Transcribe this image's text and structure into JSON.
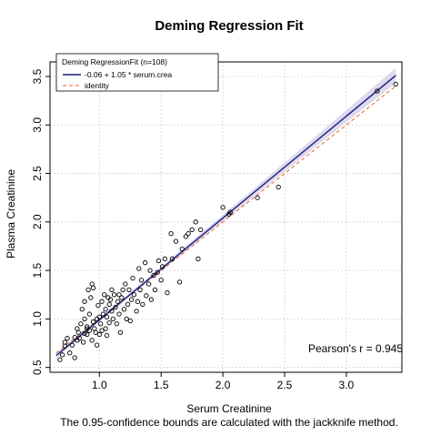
{
  "chart_data": {
    "type": "scatter",
    "title": "Deming Regression Fit",
    "xlabel": "Serum Creatinine",
    "ylabel": "Plasma Creatinine",
    "caption": "The 0.95-confidence bounds are calculated with the jackknife method.",
    "xlim": [
      0.6,
      3.45
    ],
    "ylim": [
      0.45,
      3.65
    ],
    "xticks": [
      1.0,
      1.5,
      2.0,
      2.5,
      3.0
    ],
    "xtick_labels": [
      "1.0",
      "1.5",
      "2.0",
      "2.5",
      "3.0"
    ],
    "yticks": [
      0.5,
      1.0,
      1.5,
      2.0,
      2.5,
      3.0,
      3.5
    ],
    "ytick_labels": [
      "0.5",
      "1.0",
      "1.5",
      "2.0",
      "2.5",
      "3.0",
      "3.5"
    ],
    "grid": true,
    "legend": {
      "placement": "top-left",
      "title": "Deming RegressionFit (n=108)",
      "entries": [
        {
          "label": "-0.06 + 1.05 * serum.crea",
          "color": "#1a1a80",
          "style": "solid"
        },
        {
          "label": "identity",
          "color": "#e8642c",
          "style": "dashed"
        }
      ]
    },
    "annotation": "Pearson's r = 0.945",
    "fit": {
      "intercept": -0.06,
      "slope": 1.05,
      "color": "#1a1a80"
    },
    "identity_line": {
      "color": "#e8642c"
    },
    "confidence_band": {
      "color": "#d8d4ea"
    },
    "colors": {
      "points": "#000000",
      "grid": "#d0d0d0"
    },
    "points": [
      [
        0.68,
        0.58
      ],
      [
        0.7,
        0.63
      ],
      [
        0.72,
        0.72
      ],
      [
        0.72,
        0.76
      ],
      [
        0.74,
        0.8
      ],
      [
        0.76,
        0.65
      ],
      [
        0.78,
        0.73
      ],
      [
        0.8,
        0.6
      ],
      [
        0.8,
        0.81
      ],
      [
        0.82,
        0.78
      ],
      [
        0.82,
        0.9
      ],
      [
        0.83,
        0.86
      ],
      [
        0.84,
        0.8
      ],
      [
        0.85,
        0.95
      ],
      [
        0.86,
        1.1
      ],
      [
        0.87,
        0.76
      ],
      [
        0.88,
        0.85
      ],
      [
        0.88,
        1.0
      ],
      [
        0.88,
        1.18
      ],
      [
        0.9,
        0.84
      ],
      [
        0.9,
        0.9
      ],
      [
        0.9,
        0.92
      ],
      [
        0.91,
        1.3
      ],
      [
        0.92,
        0.88
      ],
      [
        0.92,
        1.05
      ],
      [
        0.93,
        1.22
      ],
      [
        0.94,
        1.36
      ],
      [
        0.94,
        0.78
      ],
      [
        0.95,
        0.97
      ],
      [
        0.95,
        1.32
      ],
      [
        0.96,
        0.9
      ],
      [
        0.97,
        0.86
      ],
      [
        0.98,
        1.0
      ],
      [
        0.98,
        0.73
      ],
      [
        0.99,
        1.14
      ],
      [
        1.0,
        0.84
      ],
      [
        1.0,
        1.02
      ],
      [
        1.01,
        0.95
      ],
      [
        1.02,
        1.18
      ],
      [
        1.02,
        0.88
      ],
      [
        1.03,
        1.05
      ],
      [
        1.04,
        1.25
      ],
      [
        1.05,
        0.9
      ],
      [
        1.05,
        1.1
      ],
      [
        1.06,
        1.02
      ],
      [
        1.07,
        1.22
      ],
      [
        1.08,
        1.15
      ],
      [
        1.08,
        0.96
      ],
      [
        1.09,
        1.2
      ],
      [
        1.1,
        1.08
      ],
      [
        1.1,
        1.3
      ],
      [
        1.11,
        1.0
      ],
      [
        1.12,
        1.25
      ],
      [
        1.13,
        1.12
      ],
      [
        1.14,
        0.95
      ],
      [
        1.15,
        1.18
      ],
      [
        1.16,
        1.05
      ],
      [
        1.17,
        0.86
      ],
      [
        1.18,
        1.22
      ],
      [
        1.19,
        1.3
      ],
      [
        1.2,
        1.1
      ],
      [
        1.21,
        1.36
      ],
      [
        1.22,
        1.0
      ],
      [
        1.23,
        1.15
      ],
      [
        1.24,
        1.3
      ],
      [
        1.25,
        0.98
      ],
      [
        1.26,
        1.2
      ],
      [
        1.27,
        1.42
      ],
      [
        1.28,
        1.25
      ],
      [
        1.3,
        1.08
      ],
      [
        1.31,
        1.18
      ],
      [
        1.32,
        1.52
      ],
      [
        1.33,
        1.3
      ],
      [
        1.34,
        1.4
      ],
      [
        1.35,
        1.15
      ],
      [
        1.37,
        1.58
      ],
      [
        1.38,
        1.24
      ],
      [
        1.4,
        1.36
      ],
      [
        1.41,
        1.5
      ],
      [
        1.42,
        1.2
      ],
      [
        1.44,
        1.45
      ],
      [
        1.45,
        1.3
      ],
      [
        1.47,
        1.48
      ],
      [
        1.48,
        1.6
      ],
      [
        1.5,
        1.4
      ],
      [
        1.51,
        1.54
      ],
      [
        1.53,
        1.62
      ],
      [
        1.55,
        1.27
      ],
      [
        1.58,
        1.88
      ],
      [
        1.59,
        1.62
      ],
      [
        1.62,
        1.8
      ],
      [
        1.65,
        1.38
      ],
      [
        1.67,
        1.72
      ],
      [
        1.7,
        1.85
      ],
      [
        1.72,
        1.88
      ],
      [
        1.75,
        1.92
      ],
      [
        1.78,
        2.0
      ],
      [
        1.8,
        1.62
      ],
      [
        1.82,
        1.92
      ],
      [
        2.0,
        2.15
      ],
      [
        2.05,
        2.08
      ],
      [
        2.06,
        2.1
      ],
      [
        2.28,
        2.25
      ],
      [
        2.45,
        2.36
      ],
      [
        3.25,
        3.35
      ],
      [
        3.4,
        3.42
      ],
      [
        1.16,
        1.25
      ],
      [
        1.06,
        0.83
      ]
    ]
  }
}
